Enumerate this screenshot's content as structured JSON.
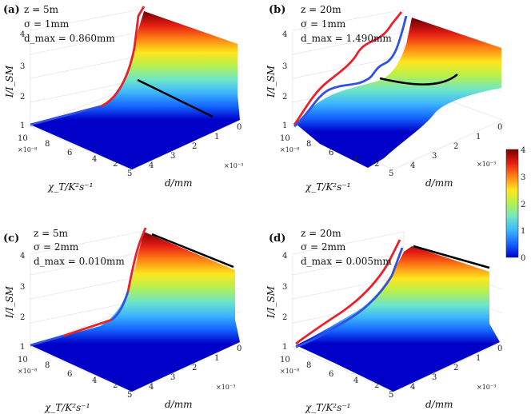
{
  "figure": {
    "colorbar": {
      "colors": [
        "#0000c8",
        "#1464ff",
        "#3cb4ff",
        "#6ee6c8",
        "#b4f050",
        "#ffe61e",
        "#ff8214",
        "#e61e14",
        "#780000"
      ],
      "ticks": [
        "0",
        "1",
        "2",
        "3",
        "4"
      ]
    }
  },
  "chart_data": [
    {
      "type": "surface",
      "panel": "(a)",
      "annotations": [
        "z = 5m",
        "σ = 1mm",
        "d_max = 0.860mm"
      ],
      "zlabel": "I/I_SM",
      "xlabel": "d/mm",
      "ylabel": "χ_T/K²s⁻¹",
      "x_ticks": [
        "0",
        "1",
        "2",
        "3",
        "4",
        "5"
      ],
      "x_exponent": "×10⁻³",
      "y_ticks": [
        "2",
        "4",
        "6",
        "8",
        "10"
      ],
      "y_exponent": "×10⁻⁸",
      "z_ticks": [
        "1",
        "2",
        "3",
        "4"
      ],
      "zlim": [
        1,
        4
      ],
      "d_max": 0.86,
      "ridge_I": [
        4.2,
        3.0,
        2.35,
        2.05,
        1.9,
        1.72,
        1.55,
        1.42,
        1.3,
        1.2,
        1.1,
        1.05
      ],
      "series": [
        {
          "name": "edge at d = 0 (red/blue)",
          "chi": [
            10,
            9,
            8,
            7,
            6,
            5,
            4.5,
            4,
            3.5,
            3,
            2.5,
            2,
            1.5,
            1.2,
            1.0
          ],
          "I": [
            1.0,
            1.1,
            1.2,
            1.3,
            1.42,
            1.55,
            1.62,
            1.72,
            1.9,
            2.1,
            2.35,
            2.65,
            3.1,
            3.6,
            4.2
          ]
        },
        {
          "name": "black line (I at d_max)",
          "chi": [
            10,
            1
          ],
          "I": [
            2.35,
            1.4
          ]
        }
      ]
    },
    {
      "type": "surface",
      "panel": "(b)",
      "annotations": [
        "z = 20m",
        "σ = 1mm",
        "d_max = 1.490mm"
      ],
      "zlabel": "I/I_SM",
      "xlabel": "d/mm",
      "ylabel": "χ_T/K²s⁻¹",
      "x_ticks": [
        "0",
        "1",
        "2",
        "3",
        "4",
        "5"
      ],
      "x_exponent": "×10⁻³",
      "y_ticks": [
        "2",
        "4",
        "6",
        "8",
        "10"
      ],
      "y_exponent": "×10⁻⁸",
      "z_ticks": [
        "1",
        "2",
        "3",
        "4"
      ],
      "zlim": [
        1,
        4
      ],
      "d_max": 1.49,
      "ridge_I": [
        4.05,
        3.6,
        3.1,
        2.85,
        2.55,
        2.3,
        2.2,
        2.15,
        1.85,
        1.55,
        1.25,
        1.1
      ],
      "series": [
        {
          "name": "red edge",
          "chi": [
            10,
            9,
            8,
            7,
            6,
            5,
            4,
            3,
            2,
            1.5,
            1
          ],
          "I": [
            1.0,
            1.4,
            2.0,
            2.4,
            2.8,
            3.0,
            3.2,
            3.5,
            3.8,
            4.0,
            4.05
          ]
        },
        {
          "name": "blue edge",
          "chi": [
            10,
            9,
            8,
            7,
            6,
            5,
            4,
            3,
            2,
            1.5,
            1
          ],
          "I": [
            1.0,
            1.3,
            1.7,
            2.2,
            2.4,
            2.4,
            2.5,
            2.8,
            3.4,
            3.8,
            4.0
          ]
        },
        {
          "name": "black line (I at d_max)",
          "chi": [
            10,
            7,
            4,
            1
          ],
          "I": [
            2.35,
            2.25,
            2.15,
            2.3
          ]
        }
      ]
    },
    {
      "type": "surface",
      "panel": "(c)",
      "annotations": [
        "z = 5m",
        "σ = 2mm",
        "d_max = 0.010mm"
      ],
      "zlabel": "I/I_SM",
      "xlabel": "d/mm",
      "ylabel": "χ_T/K²s⁻¹",
      "x_ticks": [
        "0",
        "1",
        "2",
        "3",
        "4",
        "5"
      ],
      "x_exponent": "×10⁻³",
      "y_ticks": [
        "2",
        "4",
        "6",
        "8",
        "10"
      ],
      "y_exponent": "×10⁻⁸",
      "z_ticks": [
        "1",
        "2",
        "3",
        "4"
      ],
      "zlim": [
        1,
        4
      ],
      "d_max": 0.01,
      "ridge_I": [
        4.25,
        3.1,
        2.4,
        2.05,
        1.8,
        1.62,
        1.48,
        1.38,
        1.28,
        1.2,
        1.12,
        1.05
      ],
      "series": [
        {
          "name": "edge at d = 0 (red/blue)",
          "chi": [
            10,
            8,
            6,
            5,
            4,
            3,
            2.5,
            2,
            1.5,
            1.2,
            1.0
          ],
          "I": [
            1.0,
            1.15,
            1.35,
            1.45,
            1.6,
            1.85,
            2.1,
            2.5,
            3.0,
            3.6,
            4.25
          ]
        },
        {
          "name": "black line (I at d_max)",
          "chi": [
            1.2,
            1.0
          ],
          "I": [
            4.25,
            4.05
          ]
        }
      ]
    },
    {
      "type": "surface",
      "panel": "(d)",
      "annotations": [
        "z = 20m",
        "σ = 2mm",
        "d_max = 0.005mm"
      ],
      "zlabel": "I/I_SM",
      "xlabel": "d/mm",
      "ylabel": "χ_T/K²s⁻¹",
      "x_ticks": [
        "0",
        "1",
        "2",
        "3",
        "4",
        "5"
      ],
      "x_exponent": "×10⁻³",
      "y_ticks": [
        "2",
        "4",
        "6",
        "8",
        "10"
      ],
      "y_exponent": "×10⁻⁸",
      "z_ticks": [
        "1",
        "2",
        "3",
        "4"
      ],
      "zlim": [
        1,
        4
      ],
      "d_max": 0.005,
      "ridge_I": [
        4.0,
        3.6,
        3.2,
        2.9,
        2.6,
        2.3,
        2.05,
        1.8,
        1.55,
        1.3,
        1.15,
        1.05
      ],
      "series": [
        {
          "name": "red edge",
          "chi": [
            10,
            8,
            6,
            5,
            4,
            3,
            2,
            1
          ],
          "I": [
            1.0,
            1.4,
            1.9,
            2.3,
            2.7,
            3.2,
            3.7,
            4.1
          ]
        },
        {
          "name": "blue edge",
          "chi": [
            10,
            8,
            6,
            5,
            4,
            3,
            2,
            1
          ],
          "I": [
            1.0,
            1.3,
            1.7,
            2.1,
            2.6,
            3.1,
            3.6,
            4.0
          ]
        },
        {
          "name": "black line (I at d_max)",
          "chi": [
            1.2,
            1.0
          ],
          "I": [
            4.0,
            3.8
          ]
        }
      ]
    }
  ]
}
